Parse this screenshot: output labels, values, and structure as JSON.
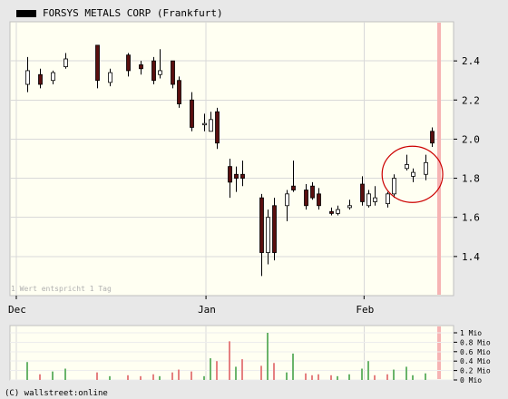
{
  "chart_data": [
    {
      "type": "candlestick",
      "title": "FORSYS METALS CORP (Frankfurt)",
      "note": "1 Wert entspricht 1 Tag",
      "x_tick_labels": [
        "Dec",
        "Jan",
        "Feb"
      ],
      "y_tick_labels": [
        "1.4",
        "1.6",
        "1.8",
        "2.0",
        "2.2",
        "2.4"
      ],
      "ylim": [
        1.2,
        2.6
      ],
      "grid": true,
      "annotation": "red circle highlighting the last three candles before the final bar",
      "candles": [
        {
          "x": 0,
          "open": 2.28,
          "high": 2.42,
          "low": 2.24,
          "close": 2.35
        },
        {
          "x": 2,
          "open": 2.33,
          "high": 2.36,
          "low": 2.26,
          "close": 2.28
        },
        {
          "x": 4,
          "open": 2.3,
          "high": 2.35,
          "low": 2.28,
          "close": 2.34
        },
        {
          "x": 6,
          "open": 2.37,
          "high": 2.44,
          "low": 2.36,
          "close": 2.41
        },
        {
          "x": 11,
          "open": 2.48,
          "high": 2.48,
          "low": 2.26,
          "close": 2.3
        },
        {
          "x": 13,
          "open": 2.29,
          "high": 2.36,
          "low": 2.27,
          "close": 2.34
        },
        {
          "x": 16,
          "open": 2.43,
          "high": 2.44,
          "low": 2.32,
          "close": 2.35
        },
        {
          "x": 18,
          "open": 2.38,
          "high": 2.4,
          "low": 2.33,
          "close": 2.36
        },
        {
          "x": 20,
          "open": 2.4,
          "high": 2.42,
          "low": 2.28,
          "close": 2.3
        },
        {
          "x": 21,
          "open": 2.33,
          "high": 2.46,
          "low": 2.31,
          "close": 2.35
        },
        {
          "x": 23,
          "open": 2.4,
          "high": 2.4,
          "low": 2.26,
          "close": 2.28
        },
        {
          "x": 24,
          "open": 2.3,
          "high": 2.32,
          "low": 2.16,
          "close": 2.18
        },
        {
          "x": 26,
          "open": 2.2,
          "high": 2.24,
          "low": 2.04,
          "close": 2.06
        },
        {
          "x": 28,
          "open": 2.08,
          "high": 2.13,
          "low": 2.04,
          "close": 2.08
        },
        {
          "x": 29,
          "open": 2.04,
          "high": 2.14,
          "low": 2.04,
          "close": 2.1
        },
        {
          "x": 30,
          "open": 2.14,
          "high": 2.16,
          "low": 1.95,
          "close": 1.98
        },
        {
          "x": 32,
          "open": 1.86,
          "high": 1.9,
          "low": 1.7,
          "close": 1.78
        },
        {
          "x": 33,
          "open": 1.82,
          "high": 1.86,
          "low": 1.73,
          "close": 1.8
        },
        {
          "x": 34,
          "open": 1.82,
          "high": 1.89,
          "low": 1.76,
          "close": 1.8
        },
        {
          "x": 37,
          "open": 1.7,
          "high": 1.72,
          "low": 1.3,
          "close": 1.42
        },
        {
          "x": 38,
          "open": 1.42,
          "high": 1.64,
          "low": 1.36,
          "close": 1.6
        },
        {
          "x": 39,
          "open": 1.66,
          "high": 1.7,
          "low": 1.38,
          "close": 1.42
        },
        {
          "x": 41,
          "open": 1.66,
          "high": 1.74,
          "low": 1.58,
          "close": 1.72
        },
        {
          "x": 42,
          "open": 1.76,
          "high": 1.89,
          "low": 1.73,
          "close": 1.74
        },
        {
          "x": 44,
          "open": 1.74,
          "high": 1.77,
          "low": 1.64,
          "close": 1.66
        },
        {
          "x": 45,
          "open": 1.76,
          "high": 1.78,
          "low": 1.69,
          "close": 1.7
        },
        {
          "x": 46,
          "open": 1.72,
          "high": 1.75,
          "low": 1.64,
          "close": 1.66
        },
        {
          "x": 48,
          "open": 1.63,
          "high": 1.65,
          "low": 1.61,
          "close": 1.62
        },
        {
          "x": 49,
          "open": 1.62,
          "high": 1.66,
          "low": 1.61,
          "close": 1.64
        },
        {
          "x": 51,
          "open": 1.65,
          "high": 1.69,
          "low": 1.64,
          "close": 1.66
        },
        {
          "x": 53,
          "open": 1.77,
          "high": 1.81,
          "low": 1.66,
          "close": 1.68
        },
        {
          "x": 54,
          "open": 1.66,
          "high": 1.74,
          "low": 1.65,
          "close": 1.72
        },
        {
          "x": 55,
          "open": 1.68,
          "high": 1.76,
          "low": 1.66,
          "close": 1.7
        },
        {
          "x": 57,
          "open": 1.67,
          "high": 1.73,
          "low": 1.65,
          "close": 1.72
        },
        {
          "x": 58,
          "open": 1.72,
          "high": 1.82,
          "low": 1.7,
          "close": 1.8
        },
        {
          "x": 60,
          "open": 1.85,
          "high": 1.92,
          "low": 1.84,
          "close": 1.87
        },
        {
          "x": 61,
          "open": 1.81,
          "high": 1.85,
          "low": 1.78,
          "close": 1.83
        },
        {
          "x": 63,
          "open": 1.82,
          "high": 1.92,
          "low": 1.79,
          "close": 1.88
        },
        {
          "x": 64,
          "open": 2.04,
          "high": 2.06,
          "low": 1.96,
          "close": 1.98
        }
      ],
      "dec_x": 0,
      "jan_x": 30,
      "feb_x": 55,
      "x_range": [
        -1,
        66
      ],
      "highlight_x": 65,
      "circle_x_range": [
        59,
        64
      ],
      "colors": {
        "up": "#ffffff",
        "down": "#5a0f0f",
        "outline": "#000000",
        "plot_bg": "#fffff2",
        "frame": "#e8e8e8",
        "circle": "#cc0000",
        "highlight": "#f6b3b3"
      }
    },
    {
      "type": "bar",
      "title": "",
      "y_tick_labels": [
        "0 Mio",
        "0.2 Mio",
        "0.4 Mio",
        "0.6 Mio",
        "0.8 Mio",
        "1 Mio"
      ],
      "ylim": [
        0,
        1.0
      ],
      "unit": "Mio",
      "colors": {
        "up": "#6ab46a",
        "down": "#e58080",
        "plot_bg": "#fffff2"
      },
      "bars": [
        {
          "x": 0,
          "value": 0.38,
          "dir": "up"
        },
        {
          "x": 2,
          "value": 0.12,
          "dir": "down"
        },
        {
          "x": 4,
          "value": 0.18,
          "dir": "up"
        },
        {
          "x": 6,
          "value": 0.24,
          "dir": "up"
        },
        {
          "x": 11,
          "value": 0.16,
          "dir": "down"
        },
        {
          "x": 13,
          "value": 0.08,
          "dir": "up"
        },
        {
          "x": 16,
          "value": 0.1,
          "dir": "down"
        },
        {
          "x": 18,
          "value": 0.08,
          "dir": "down"
        },
        {
          "x": 20,
          "value": 0.12,
          "dir": "down"
        },
        {
          "x": 21,
          "value": 0.08,
          "dir": "up"
        },
        {
          "x": 23,
          "value": 0.16,
          "dir": "down"
        },
        {
          "x": 24,
          "value": 0.22,
          "dir": "down"
        },
        {
          "x": 26,
          "value": 0.18,
          "dir": "down"
        },
        {
          "x": 28,
          "value": 0.08,
          "dir": "up"
        },
        {
          "x": 29,
          "value": 0.46,
          "dir": "up"
        },
        {
          "x": 30,
          "value": 0.4,
          "dir": "down"
        },
        {
          "x": 32,
          "value": 0.82,
          "dir": "down"
        },
        {
          "x": 33,
          "value": 0.28,
          "dir": "up"
        },
        {
          "x": 34,
          "value": 0.44,
          "dir": "down"
        },
        {
          "x": 37,
          "value": 0.3,
          "dir": "down"
        },
        {
          "x": 38,
          "value": 1.0,
          "dir": "up"
        },
        {
          "x": 39,
          "value": 0.36,
          "dir": "down"
        },
        {
          "x": 41,
          "value": 0.16,
          "dir": "up"
        },
        {
          "x": 42,
          "value": 0.56,
          "dir": "up"
        },
        {
          "x": 44,
          "value": 0.14,
          "dir": "down"
        },
        {
          "x": 45,
          "value": 0.1,
          "dir": "down"
        },
        {
          "x": 46,
          "value": 0.12,
          "dir": "down"
        },
        {
          "x": 48,
          "value": 0.1,
          "dir": "down"
        },
        {
          "x": 49,
          "value": 0.08,
          "dir": "up"
        },
        {
          "x": 51,
          "value": 0.12,
          "dir": "up"
        },
        {
          "x": 53,
          "value": 0.24,
          "dir": "up"
        },
        {
          "x": 54,
          "value": 0.4,
          "dir": "up"
        },
        {
          "x": 55,
          "value": 0.1,
          "dir": "down"
        },
        {
          "x": 57,
          "value": 0.12,
          "dir": "down"
        },
        {
          "x": 58,
          "value": 0.22,
          "dir": "up"
        },
        {
          "x": 60,
          "value": 0.28,
          "dir": "up"
        },
        {
          "x": 61,
          "value": 0.1,
          "dir": "up"
        },
        {
          "x": 63,
          "value": 0.14,
          "dir": "up"
        }
      ]
    }
  ],
  "footer": {
    "copyright": "(C) wallstreet:online"
  }
}
